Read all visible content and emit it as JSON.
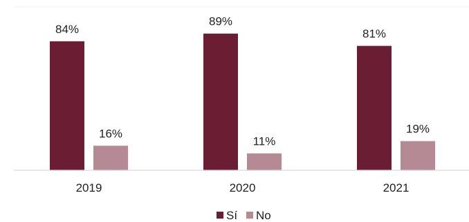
{
  "chart_data": {
    "type": "bar",
    "title": "",
    "xlabel": "",
    "ylabel": "",
    "categories": [
      "2019",
      "2020",
      "2021"
    ],
    "series": [
      {
        "name": "Sí",
        "values": [
          84,
          89,
          81
        ],
        "labels": [
          "84%",
          "89%",
          "81%"
        ],
        "color": "#6b1d33"
      },
      {
        "name": "No",
        "values": [
          16,
          11,
          19
        ],
        "labels": [
          "16%",
          "11%",
          "19%"
        ],
        "color": "#b58a95"
      }
    ],
    "ylim": [
      0,
      100
    ],
    "value_suffix": "%",
    "grid": false,
    "legend": "bottom-center"
  }
}
